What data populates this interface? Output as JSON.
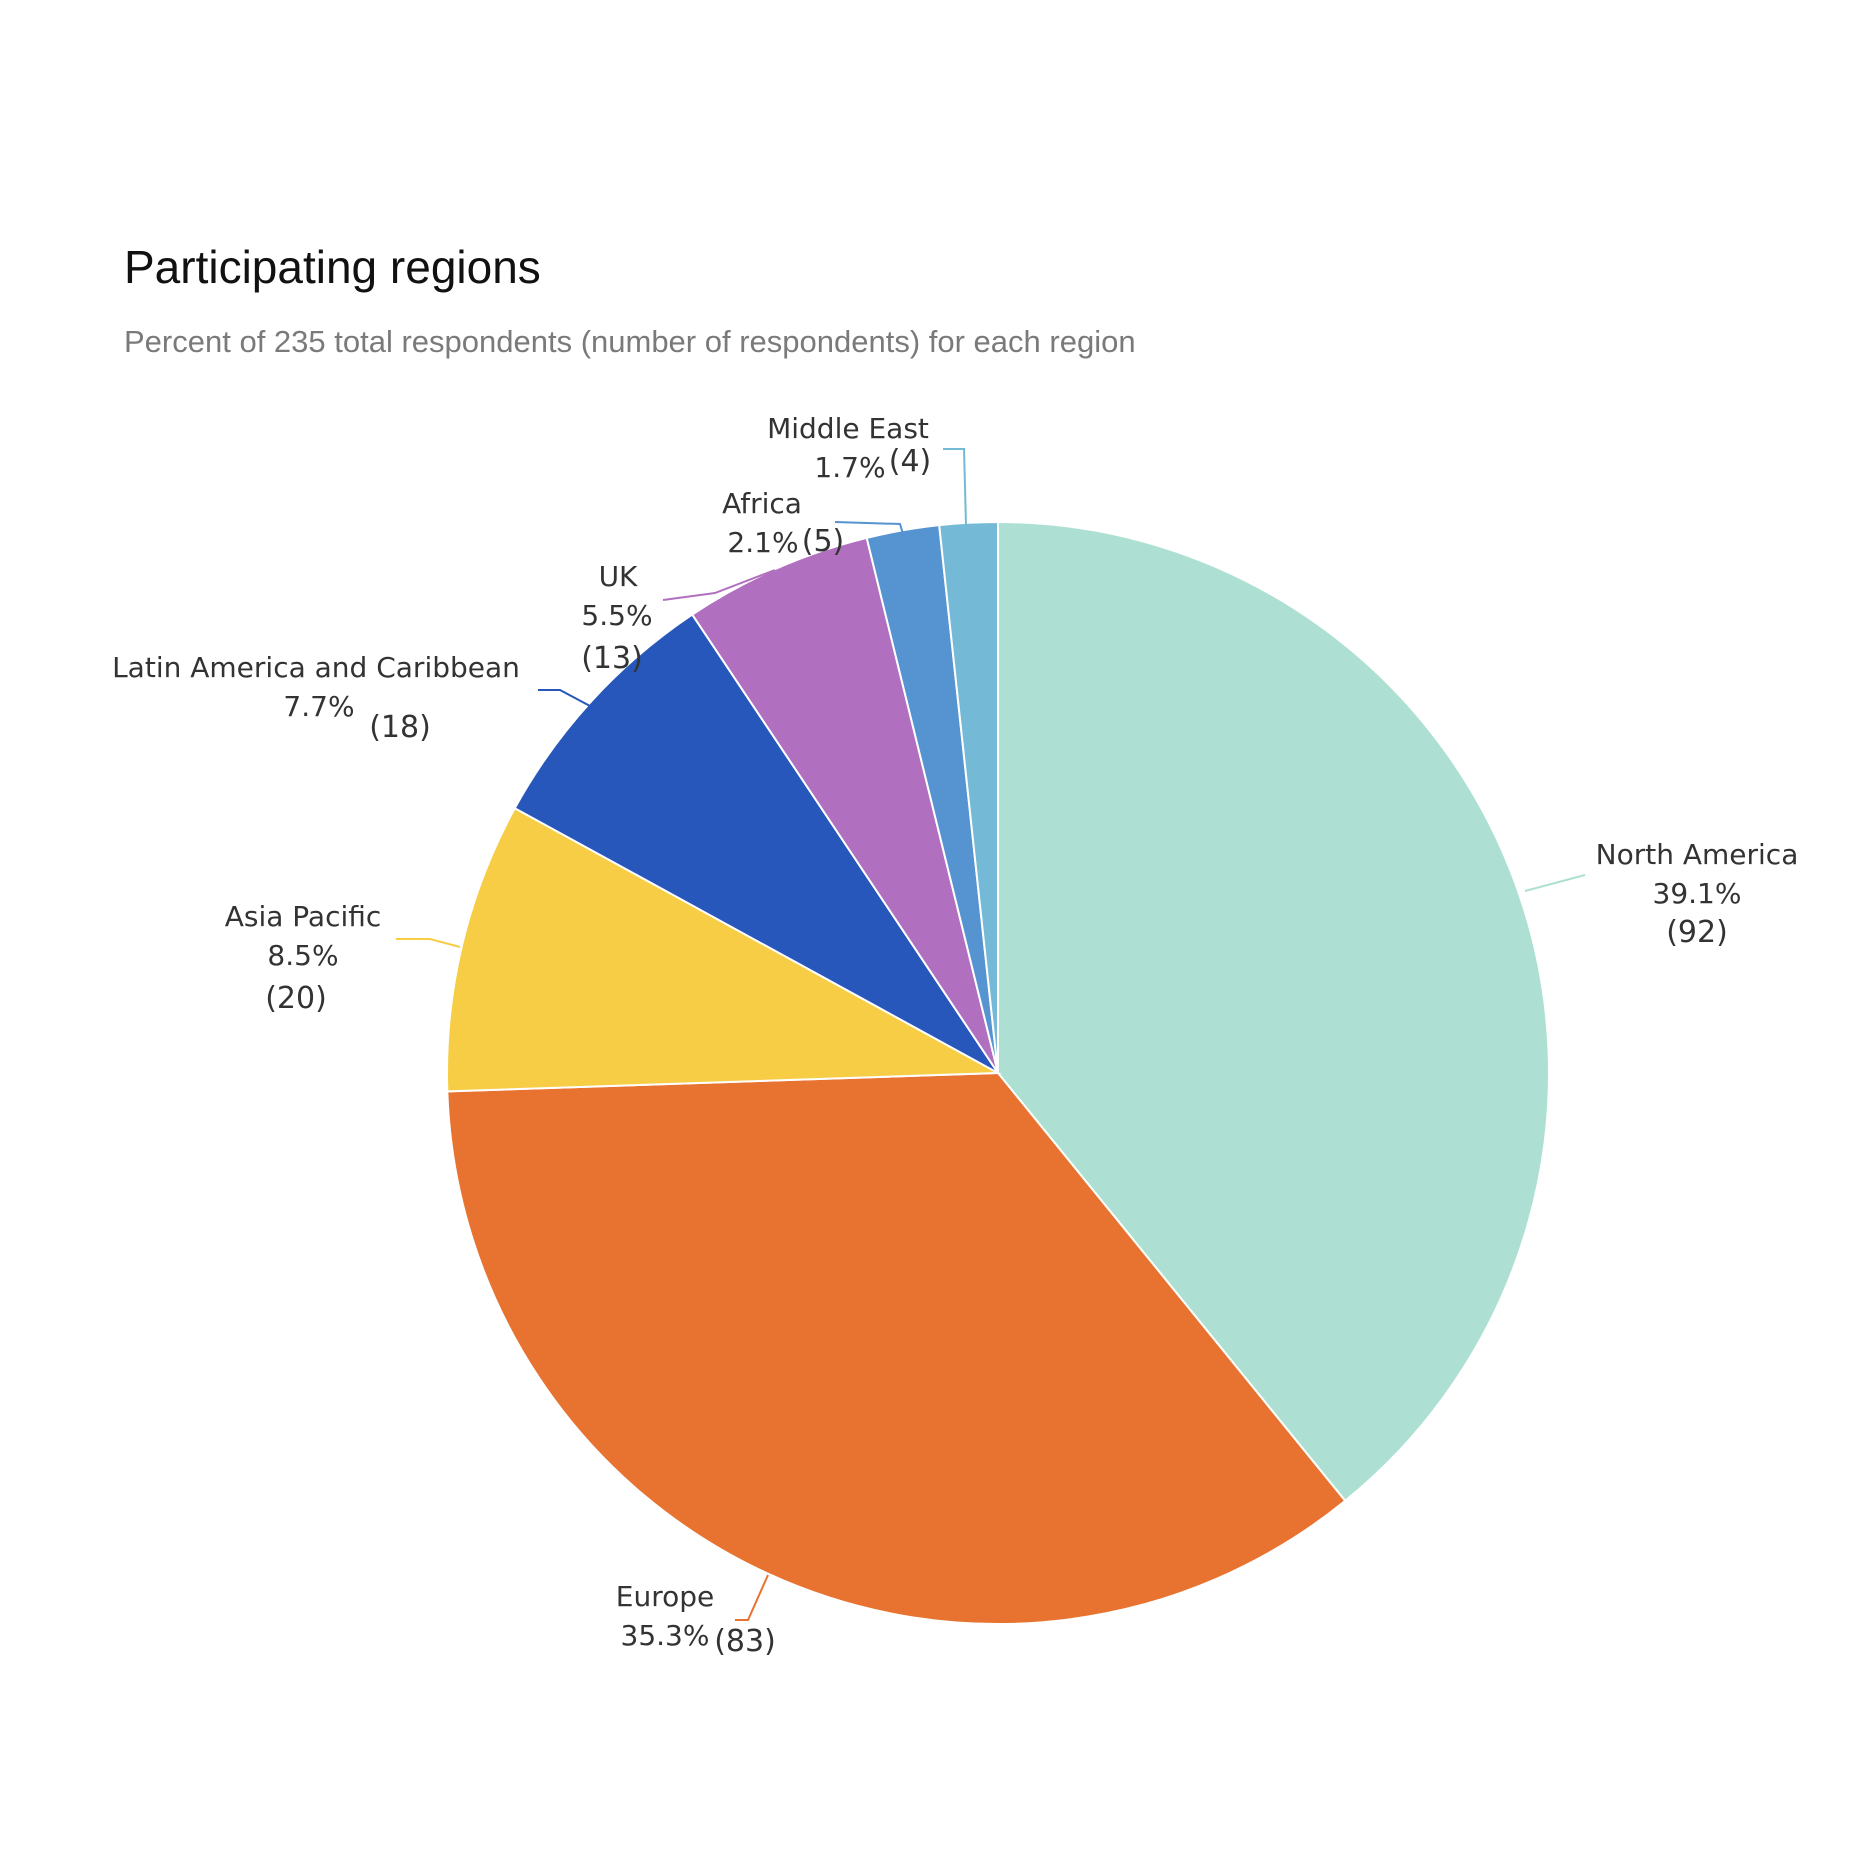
{
  "chart_data": {
    "type": "pie",
    "title": "Participating regions",
    "subtitle": "Percent of 235 total respondents (number of respondents) for each region",
    "slices": [
      {
        "label": "North America",
        "percent": "39.1%",
        "count": "(92)",
        "value": 92,
        "color": "#ADE0D2"
      },
      {
        "label": "Europe",
        "percent": "35.3%",
        "count": "(83)",
        "value": 83,
        "color": "#E87330"
      },
      {
        "label": "Asia Pacific",
        "percent": "8.5%",
        "count": "(20)",
        "value": 20,
        "color": "#F6CD45"
      },
      {
        "label": "Latin America and Caribbean",
        "percent": "7.7%",
        "count": "(18)",
        "value": 18,
        "color": "#2757BB"
      },
      {
        "label": "UK",
        "percent": "5.5%",
        "count": "(13)",
        "value": 13,
        "color": "#B170BF"
      },
      {
        "label": "Africa",
        "percent": "2.1%",
        "count": "(5)",
        "value": 5,
        "color": "#5693D1"
      },
      {
        "label": "Middle East",
        "percent": "1.7%",
        "count": "(4)",
        "value": 4,
        "color": "#74BAD6"
      }
    ]
  }
}
